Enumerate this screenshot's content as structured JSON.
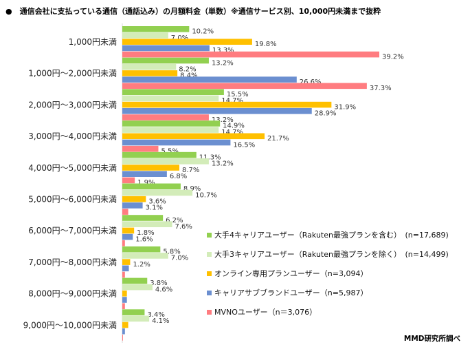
{
  "chart_data": {
    "type": "bar",
    "orientation": "horizontal",
    "title": "●　通信会社に支払っている通信（通話込み）の月額料金（単数）※通信サービス別、10,000円未満まで抜粋",
    "categories": [
      "1,000円未満",
      "1,000円～2,000円未満",
      "2,000円～3,000円未満",
      "3,000円～4,000円未満",
      "4,000円～5,000円未満",
      "5,000円～6,000円未満",
      "6,000円～7,000円未満",
      "7,000円～8,000円未満",
      "8,000円～9,000円未満",
      "9,000円～10,000円未満"
    ],
    "unit": "%",
    "xlim": [
      0,
      40
    ],
    "grid": false,
    "legend_position": "right",
    "series": [
      {
        "name": "大手4キャリアユーザー（Rakuten最強プランを含む）　(n=17,689)",
        "color": "#92d050",
        "values": [
          10.2,
          13.2,
          15.5,
          14.9,
          11.3,
          8.9,
          6.2,
          5.8,
          3.8,
          3.4
        ],
        "labels_shown": [
          true,
          true,
          true,
          true,
          true,
          true,
          true,
          true,
          true,
          true
        ]
      },
      {
        "name": "大手3キャリアユーザー（Rakuten最強プランを除く）　(n=14,499)",
        "color": "#d3ecb9",
        "values": [
          7.0,
          8.2,
          14.7,
          14.7,
          13.2,
          10.7,
          7.6,
          7.0,
          4.6,
          4.1
        ],
        "labels_shown": [
          true,
          true,
          true,
          true,
          true,
          true,
          true,
          true,
          true,
          true
        ]
      },
      {
        "name": "オンライン専用プランユーザー（n=3,094）",
        "color": "#ffc000",
        "values": [
          19.8,
          8.4,
          31.9,
          21.7,
          8.7,
          3.6,
          1.8,
          1.2,
          0.7,
          0.9
        ],
        "labels_shown": [
          true,
          true,
          true,
          true,
          true,
          true,
          true,
          true,
          false,
          false
        ]
      },
      {
        "name": "キャリアサブブランドユーザー（n=5,987）",
        "color": "#6b8fd0",
        "values": [
          13.3,
          26.6,
          28.9,
          16.5,
          6.8,
          3.1,
          1.6,
          1.0,
          0.7,
          0.4
        ],
        "labels_shown": [
          true,
          true,
          true,
          true,
          true,
          true,
          true,
          false,
          false,
          false
        ]
      },
      {
        "name": "MVNOユーザー（n＝3,076）",
        "color": "#ff7c80",
        "values": [
          39.2,
          37.3,
          13.2,
          5.5,
          1.9,
          0.9,
          0.4,
          0.4,
          0.4,
          0.1
        ],
        "labels_shown": [
          true,
          true,
          true,
          true,
          true,
          false,
          false,
          false,
          false,
          false
        ]
      }
    ]
  },
  "credit": "MMD研究所調べ"
}
